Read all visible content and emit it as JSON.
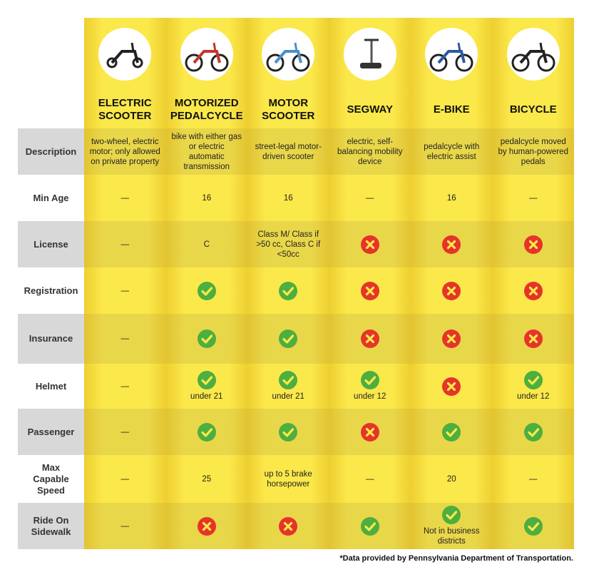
{
  "table": {
    "columns": [
      "ELECTRIC SCOOTER",
      "MOTORIZED PEDALCYCLE",
      "MOTOR SCOOTER",
      "SEGWAY",
      "E-BIKE",
      "BICYCLE"
    ],
    "rows": [
      {
        "label": "Description",
        "cells": [
          "two-wheel, electric motor; only allowed on private property",
          "bike with either gas or electric automatic transmission",
          "street-legal motor-driven scooter",
          "electric, self-balancing mobility device",
          "pedalcycle with electric assist",
          "pedalcycle moved by human-powered pedals"
        ]
      },
      {
        "label": "Min Age",
        "cells": [
          "—",
          16,
          16,
          "—",
          16,
          "—"
        ]
      },
      {
        "label": "License",
        "cells": [
          "—",
          "C",
          "Class M/ Class if >50 cc, Class C if <50cc",
          {
            "icon": "cross"
          },
          {
            "icon": "cross"
          },
          {
            "icon": "cross"
          }
        ]
      },
      {
        "label": "Registration",
        "cells": [
          "—",
          {
            "icon": "check"
          },
          {
            "icon": "check"
          },
          {
            "icon": "cross"
          },
          {
            "icon": "cross"
          },
          {
            "icon": "cross"
          }
        ]
      },
      {
        "label": "Insurance",
        "cells": [
          "—",
          {
            "icon": "check"
          },
          {
            "icon": "check"
          },
          {
            "icon": "cross"
          },
          {
            "icon": "cross"
          },
          {
            "icon": "cross"
          }
        ]
      },
      {
        "label": "Helmet",
        "cells": [
          "—",
          {
            "icon": "check",
            "note": "under 21"
          },
          {
            "icon": "check",
            "note": "under 21"
          },
          {
            "icon": "check",
            "note": "under 12"
          },
          {
            "icon": "cross"
          },
          {
            "icon": "check",
            "note": "under 12"
          }
        ]
      },
      {
        "label": "Passenger",
        "cells": [
          "—",
          {
            "icon": "check"
          },
          {
            "icon": "check"
          },
          {
            "icon": "cross"
          },
          {
            "icon": "check"
          },
          {
            "icon": "check"
          }
        ]
      },
      {
        "label": "Max Capable Speed",
        "cells": [
          "—",
          25,
          "up to 5 brake horsepower",
          "—",
          20,
          "—"
        ]
      },
      {
        "label": "Ride On Sidewalk",
        "cells": [
          "—",
          {
            "icon": "cross"
          },
          {
            "icon": "cross"
          },
          {
            "icon": "check"
          },
          {
            "icon": "check",
            "note": "Not in business districts"
          },
          {
            "icon": "check"
          }
        ]
      }
    ],
    "footnote": "*Data provided by Pennsylvania Department of Transportation."
  }
}
